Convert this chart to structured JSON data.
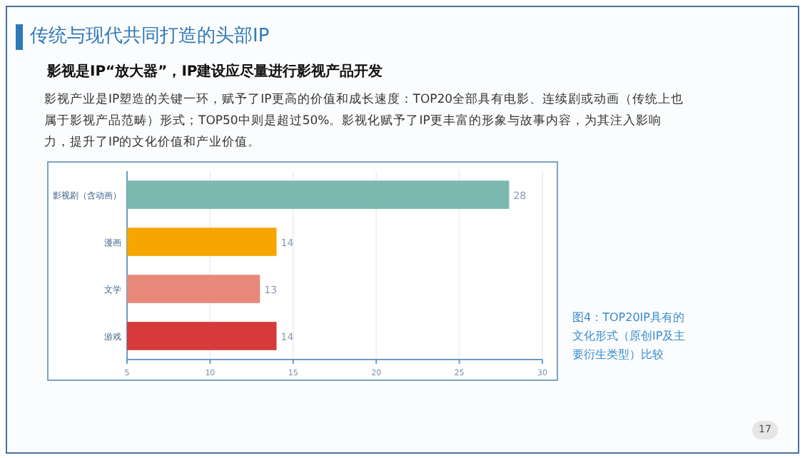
{
  "chart_data": {
    "type": "bar",
    "orientation": "horizontal",
    "title": "传统与现代共同打造的头部IP",
    "subtitle": "影视是IP“放大器”，IP建设应尽量进行影视产品开发",
    "annotations": [
      "影视产业是IP塑造的关键一环，赋予了IP更高的价值和成长速度：TOP20全部具有电影、连续剧或动画（传统上也属于影视产品范畴）形式；TOP50中则是超过50%。影视化赋予了IP更丰富的形象与故事内容，为其注入影响力，提升了IP的文化价值和产业价值。",
      "图4：TOP20IP具有的文化形式（原创IP及主要衍生类型）比较",
      "17"
    ],
    "categories": [
      "影视剧（含动画）",
      "漫画",
      "文学",
      "游戏"
    ],
    "values": [
      28,
      14,
      13,
      14
    ],
    "colors": [
      "#7ab8b0",
      "#f7a600",
      "#e8887a",
      "#d63a3a"
    ],
    "data_labels": true,
    "xlim": [
      5,
      30
    ],
    "xticks": [
      5,
      10,
      15,
      20,
      25,
      30
    ],
    "grid": "x"
  }
}
